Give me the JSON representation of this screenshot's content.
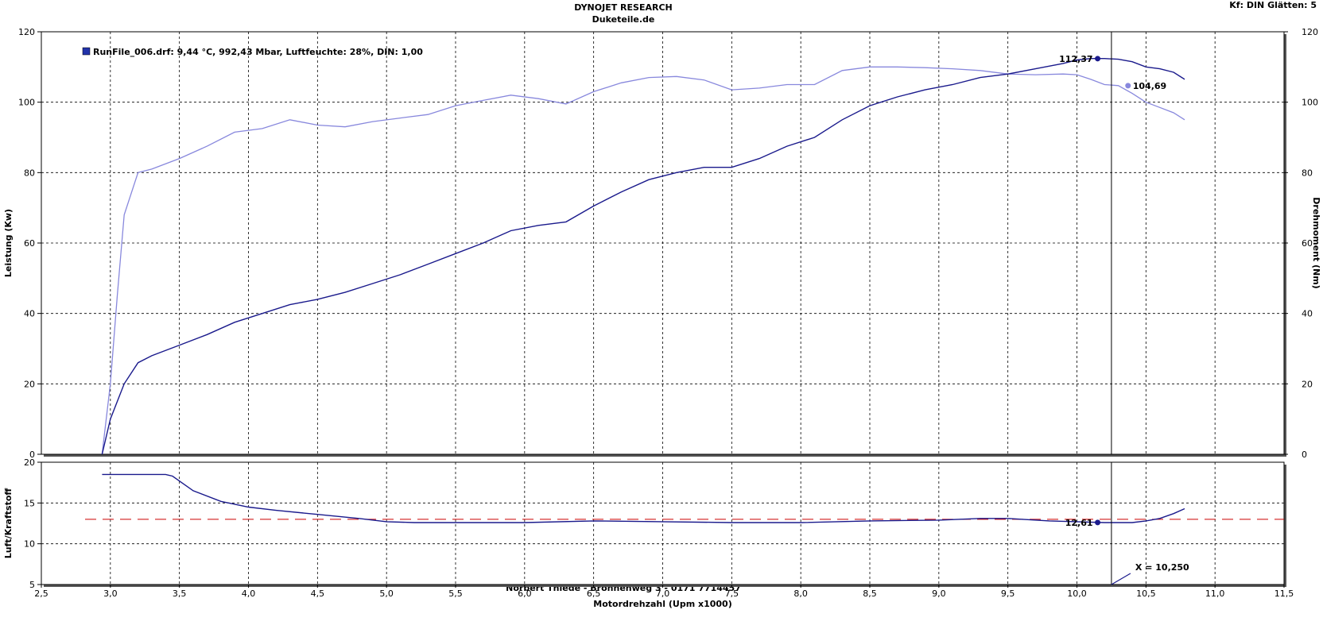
{
  "header": {
    "title": "DYNOJET RESEARCH",
    "subtitle": "Duketeile.de",
    "settings": "Kf: DIN  Glätten: 5",
    "footer": "Norbert Thiede - Bröhnenweg 3 - 0171 7714457"
  },
  "colors": {
    "power": "#1a1a8c",
    "torque": "#8888dd",
    "afr": "#1a1a8c",
    "afr_target": "#cc0000",
    "grid": "#000000",
    "background": "#ffffff"
  },
  "chart_data": [
    {
      "type": "line",
      "legend_text": "RunFile_006.drf: 9,44 °C, 992,43 Mbar, Luftfeuchte: 28%, DIN: 1,00",
      "legend_icon": "run-file-icon",
      "xlim": [
        2.5,
        11.5
      ],
      "x_ticks": [
        "2,5",
        "3,0",
        "3,5",
        "4,0",
        "4,5",
        "5,0",
        "5,5",
        "6,0",
        "6,5",
        "7,0",
        "7,5",
        "8,0",
        "8,5",
        "9,0",
        "9,5",
        "10,0",
        "10,5",
        "11,0",
        "11,5"
      ],
      "y_left": {
        "label": "Leistung (Kw)",
        "lim": [
          0,
          120
        ],
        "ticks": [
          "0",
          "20",
          "40",
          "60",
          "80",
          "100",
          "120"
        ]
      },
      "y_right": {
        "label": "Drehmoment (Nm)",
        "lim": [
          0,
          120
        ],
        "ticks": [
          "0",
          "20",
          "40",
          "60",
          "80",
          "100",
          "120"
        ]
      },
      "grid": true,
      "cursor_x": 10.25,
      "series": [
        {
          "key": "power",
          "axis": "left",
          "x": [
            2.94,
            3.0,
            3.1,
            3.2,
            3.3,
            3.5,
            3.7,
            3.9,
            4.1,
            4.3,
            4.5,
            4.7,
            4.9,
            5.1,
            5.3,
            5.5,
            5.7,
            5.9,
            6.1,
            6.3,
            6.5,
            6.7,
            6.9,
            7.1,
            7.3,
            7.5,
            7.7,
            7.9,
            8.1,
            8.3,
            8.5,
            8.7,
            8.9,
            9.1,
            9.3,
            9.5,
            9.7,
            9.9,
            10.0,
            10.1,
            10.2,
            10.3,
            10.4,
            10.5,
            10.6,
            10.7,
            10.78
          ],
          "y": [
            0,
            10,
            20,
            26,
            28,
            31,
            34,
            37.5,
            40,
            42.5,
            44,
            46,
            48.5,
            51,
            54,
            57,
            60,
            63.5,
            65,
            66,
            70.5,
            74.5,
            78,
            80,
            81.5,
            81.5,
            84,
            87.5,
            90,
            95,
            99,
            101.5,
            103.5,
            105,
            107,
            108,
            109.5,
            111,
            112,
            112.4,
            112.4,
            112.2,
            111.5,
            110,
            109.5,
            108.5,
            106.5
          ],
          "marker": {
            "x": 10.15,
            "y": 112.37,
            "label": "112,37"
          }
        },
        {
          "key": "torque",
          "axis": "right",
          "x": [
            2.94,
            3.0,
            3.05,
            3.1,
            3.2,
            3.3,
            3.5,
            3.7,
            3.9,
            4.1,
            4.3,
            4.5,
            4.7,
            4.9,
            5.1,
            5.3,
            5.5,
            5.7,
            5.9,
            6.1,
            6.3,
            6.5,
            6.7,
            6.9,
            7.1,
            7.3,
            7.5,
            7.7,
            7.9,
            8.1,
            8.3,
            8.5,
            8.7,
            8.9,
            9.1,
            9.3,
            9.5,
            9.7,
            9.9,
            10.0,
            10.1,
            10.2,
            10.3,
            10.4,
            10.5,
            10.6,
            10.7,
            10.78
          ],
          "y": [
            0,
            20,
            45,
            68,
            80,
            81,
            84,
            87.5,
            91.5,
            92.5,
            95,
            93.5,
            93,
            94.5,
            95.5,
            96.5,
            99,
            100.5,
            102,
            101,
            99.5,
            103,
            105.5,
            107,
            107.3,
            106.3,
            103.5,
            104,
            105,
            105,
            109,
            110,
            110,
            109.8,
            109.5,
            109,
            108,
            107.8,
            108,
            107.8,
            106.5,
            105,
            104.7,
            102.5,
            100,
            98.5,
            97,
            95
          ],
          "marker": {
            "x": 10.37,
            "y": 104.69,
            "label": "104,69"
          }
        }
      ]
    },
    {
      "type": "line",
      "xlabel": "Motordrehzahl (Upm x1000)",
      "ylabel": "Luft/Kraftstoff",
      "xlim": [
        2.5,
        11.5
      ],
      "ylim": [
        5,
        20
      ],
      "y_ticks": [
        "5",
        "10",
        "15",
        "20"
      ],
      "target_afr": 13,
      "cursor_readout": "X = 10,250",
      "series": [
        {
          "key": "afr",
          "x": [
            2.94,
            3.0,
            3.2,
            3.4,
            3.45,
            3.6,
            3.8,
            4.0,
            4.2,
            4.5,
            4.8,
            5.0,
            5.2,
            5.5,
            6.0,
            6.5,
            7.0,
            7.5,
            8.0,
            8.5,
            9.0,
            9.3,
            9.5,
            9.8,
            10.0,
            10.2,
            10.4,
            10.5,
            10.6,
            10.7,
            10.78
          ],
          "y": [
            18.5,
            18.5,
            18.5,
            18.5,
            18.3,
            16.5,
            15.2,
            14.5,
            14.1,
            13.6,
            13.1,
            12.7,
            12.6,
            12.6,
            12.6,
            12.8,
            12.7,
            12.6,
            12.6,
            12.8,
            12.9,
            13.1,
            13.1,
            12.8,
            12.7,
            12.6,
            12.6,
            12.8,
            13.1,
            13.7,
            14.3
          ],
          "marker": {
            "x": 10.15,
            "y": 12.61,
            "label": "12,61"
          }
        }
      ]
    }
  ]
}
